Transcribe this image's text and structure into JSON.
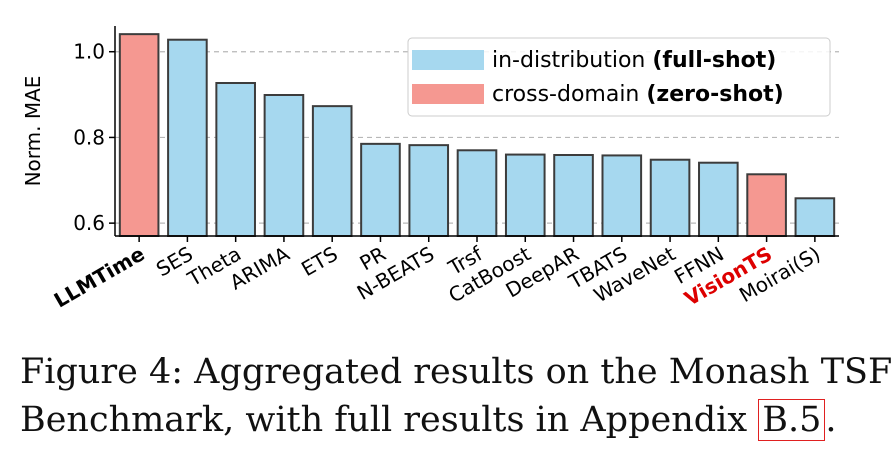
{
  "chart_data": {
    "type": "bar",
    "ylabel": "Norm. MAE",
    "xlabel": "",
    "ylim": [
      0.57,
      1.06
    ],
    "yticks": [
      0.6,
      0.8,
      1.0
    ],
    "ytick_labels": [
      "0.6",
      "0.8",
      "1.0"
    ],
    "grid": "horizontal dashed",
    "legend_position": "top-right",
    "categories": [
      "LLMTime",
      "SES",
      "Theta",
      "ARIMA",
      "ETS",
      "PR",
      "N-BEATS",
      "Trsf",
      "CatBoost",
      "DeepAR",
      "TBATS",
      "WaveNet",
      "FFNN",
      "VisionTS",
      "Moirai(S)"
    ],
    "values": [
      1.041,
      1.028,
      0.927,
      0.899,
      0.873,
      0.785,
      0.782,
      0.77,
      0.76,
      0.759,
      0.758,
      0.748,
      0.741,
      0.714,
      0.658
    ],
    "groups": [
      "cross-domain",
      "in-distribution",
      "in-distribution",
      "in-distribution",
      "in-distribution",
      "in-distribution",
      "in-distribution",
      "in-distribution",
      "in-distribution",
      "in-distribution",
      "in-distribution",
      "in-distribution",
      "in-distribution",
      "cross-domain",
      "in-distribution"
    ],
    "label_styles": [
      "bold",
      "normal",
      "normal",
      "normal",
      "normal",
      "normal",
      "normal",
      "normal",
      "normal",
      "normal",
      "normal",
      "normal",
      "normal",
      "bold-red",
      "normal"
    ],
    "legend": [
      {
        "key": "in-distribution",
        "text": "in-distribution ",
        "bold_text": "(full-shot)",
        "color": "#a6d8ef"
      },
      {
        "key": "cross-domain",
        "text": "cross-domain ",
        "bold_text": "(zero-shot)",
        "color": "#f59891"
      }
    ]
  },
  "colors": {
    "in_distribution": "#a6d8ef",
    "cross_domain": "#f59891",
    "bar_edge": "#3c3c3c",
    "highlight_label": "#dd0000"
  },
  "caption": {
    "line1": "Figure 4: Aggregated results on the Monash TSF",
    "line2_prefix": "Benchmark, with full results in Appendix ",
    "line2_ref": "B.5",
    "line2_suffix": "."
  }
}
